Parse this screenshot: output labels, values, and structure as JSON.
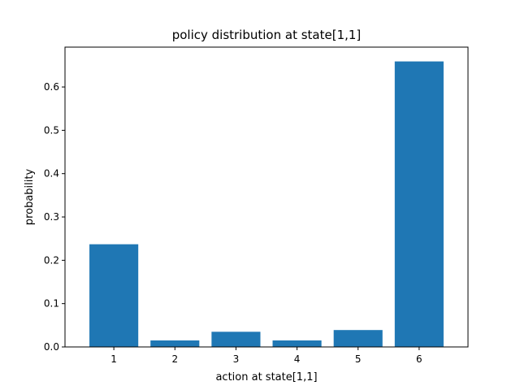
{
  "chart_data": {
    "type": "bar",
    "title": "policy distribution at state[1,1]",
    "xlabel": "action at state[1,1]",
    "ylabel": "probability",
    "categories": [
      "1",
      "2",
      "3",
      "4",
      "5",
      "6"
    ],
    "values": [
      0.237,
      0.015,
      0.035,
      0.015,
      0.039,
      0.659
    ],
    "ylim": [
      0,
      0.692
    ],
    "yticks": [
      0.0,
      0.1,
      0.2,
      0.3,
      0.4,
      0.5,
      0.6
    ],
    "ytick_labels": [
      "0.0",
      "0.1",
      "0.2",
      "0.3",
      "0.4",
      "0.5",
      "0.6"
    ],
    "bar_color": "#1f77b4",
    "grid": false,
    "legend": "none"
  }
}
